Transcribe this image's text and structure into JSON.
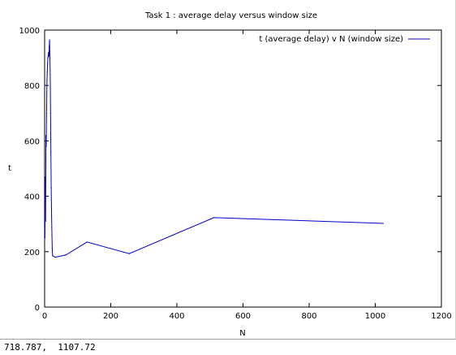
{
  "chart_data": {
    "type": "line",
    "title": "Task 1 : average delay versus window size",
    "xlabel": "N",
    "ylabel": "t",
    "xlim": [
      0,
      1200
    ],
    "ylim": [
      0,
      1000
    ],
    "x_ticks": [
      "0",
      "200",
      "400",
      "600",
      "800",
      "1000",
      "1200"
    ],
    "y_ticks": [
      "0",
      "200",
      "400",
      "600",
      "800",
      "1000"
    ],
    "legend_position": "top-right",
    "grid": false,
    "series": [
      {
        "name": "t (average delay) v N (window size)",
        "color": "#0000cc",
        "x": [
          1,
          2,
          3,
          4,
          5,
          6,
          7,
          8,
          9,
          10,
          11,
          12,
          13,
          14,
          15,
          16,
          17,
          18,
          19,
          20,
          21,
          22,
          23,
          24,
          32,
          64,
          128,
          256,
          512,
          1024
        ],
        "y": [
          250,
          470,
          310,
          620,
          580,
          700,
          820,
          850,
          880,
          900,
          910,
          920,
          905,
          940,
          965,
          900,
          840,
          700,
          560,
          430,
          330,
          260,
          210,
          185,
          180,
          188,
          235,
          193,
          323,
          302
        ]
      }
    ]
  },
  "status": {
    "coords": "718.787,  1107.72"
  }
}
